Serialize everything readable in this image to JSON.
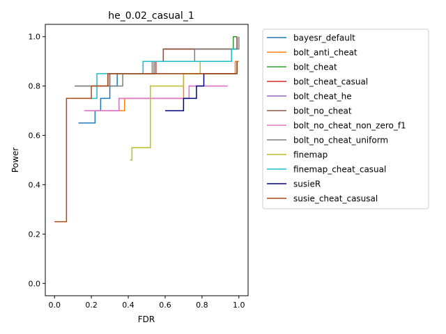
{
  "chart_data": {
    "type": "line",
    "title": "he_0.02_casual_1",
    "xlabel": "FDR",
    "ylabel": "Power",
    "xlim": [
      -0.05,
      1.05
    ],
    "ylim": [
      -0.05,
      1.05
    ],
    "xticks": [
      "0.0",
      "0.2",
      "0.4",
      "0.6",
      "0.8",
      "1.0"
    ],
    "yticks": [
      "0.0",
      "0.2",
      "0.4",
      "0.6",
      "0.8",
      "1.0"
    ],
    "grid": false,
    "legend_position": "outside-right",
    "series": [
      {
        "name": "bayesr_default",
        "color": "#1f77b4",
        "x": [
          0.13,
          0.22,
          0.22,
          0.25,
          0.25,
          0.3,
          0.3,
          0.34,
          0.34,
          0.98
        ],
        "y": [
          0.65,
          0.65,
          0.7,
          0.7,
          0.75,
          0.75,
          0.8,
          0.8,
          0.85,
          0.85
        ]
      },
      {
        "name": "bolt_anti_cheat",
        "color": "#ff7f0e",
        "x": [
          0.3,
          0.38,
          0.38,
          0.7,
          0.7,
          0.98,
          0.98,
          1.0
        ],
        "y": [
          0.7,
          0.7,
          0.75,
          0.75,
          0.85,
          0.85,
          0.9,
          0.9
        ]
      },
      {
        "name": "bolt_cheat",
        "color": "#2ca02c",
        "x": [
          0.6,
          0.97,
          0.97,
          0.99
        ],
        "y": [
          0.95,
          0.95,
          1.0,
          1.0
        ]
      },
      {
        "name": "bolt_cheat_casual",
        "color": "#d62728",
        "x": [
          0.2,
          0.29,
          0.29,
          0.55,
          0.55,
          0.59,
          0.59,
          0.99,
          0.99
        ],
        "y": [
          0.8,
          0.8,
          0.85,
          0.85,
          0.9,
          0.9,
          0.95,
          0.95,
          1.0
        ]
      },
      {
        "name": "bolt_cheat_he",
        "color": "#9467bd",
        "x": [
          0.17,
          0.35,
          0.35,
          0.73,
          0.73,
          0.93
        ],
        "y": [
          0.7,
          0.7,
          0.75,
          0.75,
          0.8,
          0.8
        ]
      },
      {
        "name": "bolt_no_cheat",
        "color": "#8c564b",
        "x": [
          0.11,
          0.3,
          0.3,
          0.32,
          0.32,
          0.54,
          0.54,
          0.59,
          0.59,
          0.99,
          0.99
        ],
        "y": [
          0.8,
          0.8,
          0.85,
          0.85,
          0.85,
          0.85,
          0.9,
          0.9,
          0.95,
          0.95,
          1.0
        ]
      },
      {
        "name": "bolt_no_cheat_non_zero_f1",
        "color": "#e377c2",
        "x": [
          0.16,
          0.35,
          0.35,
          0.73,
          0.73,
          0.94
        ],
        "y": [
          0.7,
          0.7,
          0.75,
          0.75,
          0.8,
          0.8
        ]
      },
      {
        "name": "bolt_no_cheat_uniform",
        "color": "#7f7f7f",
        "x": [
          0.11,
          0.37,
          0.37,
          0.53,
          0.53,
          0.76,
          0.76,
          1.0,
          1.0
        ],
        "y": [
          0.8,
          0.8,
          0.85,
          0.85,
          0.9,
          0.9,
          0.95,
          0.95,
          1.0
        ]
      },
      {
        "name": "finemap",
        "color": "#bcbd22",
        "x": [
          0.41,
          0.42,
          0.42,
          0.52,
          0.52,
          0.7,
          0.7,
          0.79,
          0.79,
          0.85
        ],
        "y": [
          0.5,
          0.5,
          0.55,
          0.55,
          0.8,
          0.8,
          0.85,
          0.85,
          0.9,
          0.9
        ]
      },
      {
        "name": "finemap_cheat_casual",
        "color": "#17becf",
        "x": [
          0.2,
          0.23,
          0.23,
          0.48,
          0.48,
          0.96,
          0.96,
          0.99
        ],
        "y": [
          0.75,
          0.75,
          0.85,
          0.85,
          0.9,
          0.9,
          0.95,
          0.95
        ]
      },
      {
        "name": "susieR",
        "color": "#000080",
        "x": [
          0.6,
          0.7,
          0.7,
          0.77,
          0.77,
          0.81,
          0.81,
          0.99,
          0.99
        ],
        "y": [
          0.7,
          0.7,
          0.75,
          0.75,
          0.8,
          0.8,
          0.85,
          0.85,
          0.9
        ]
      },
      {
        "name": "susie_cheat_casusal",
        "color": "#a94a12",
        "x": [
          0.0,
          0.065,
          0.065,
          0.2,
          0.2,
          0.29,
          0.29,
          0.99,
          0.99
        ],
        "y": [
          0.25,
          0.25,
          0.75,
          0.75,
          0.8,
          0.8,
          0.85,
          0.85,
          0.9
        ]
      }
    ]
  }
}
